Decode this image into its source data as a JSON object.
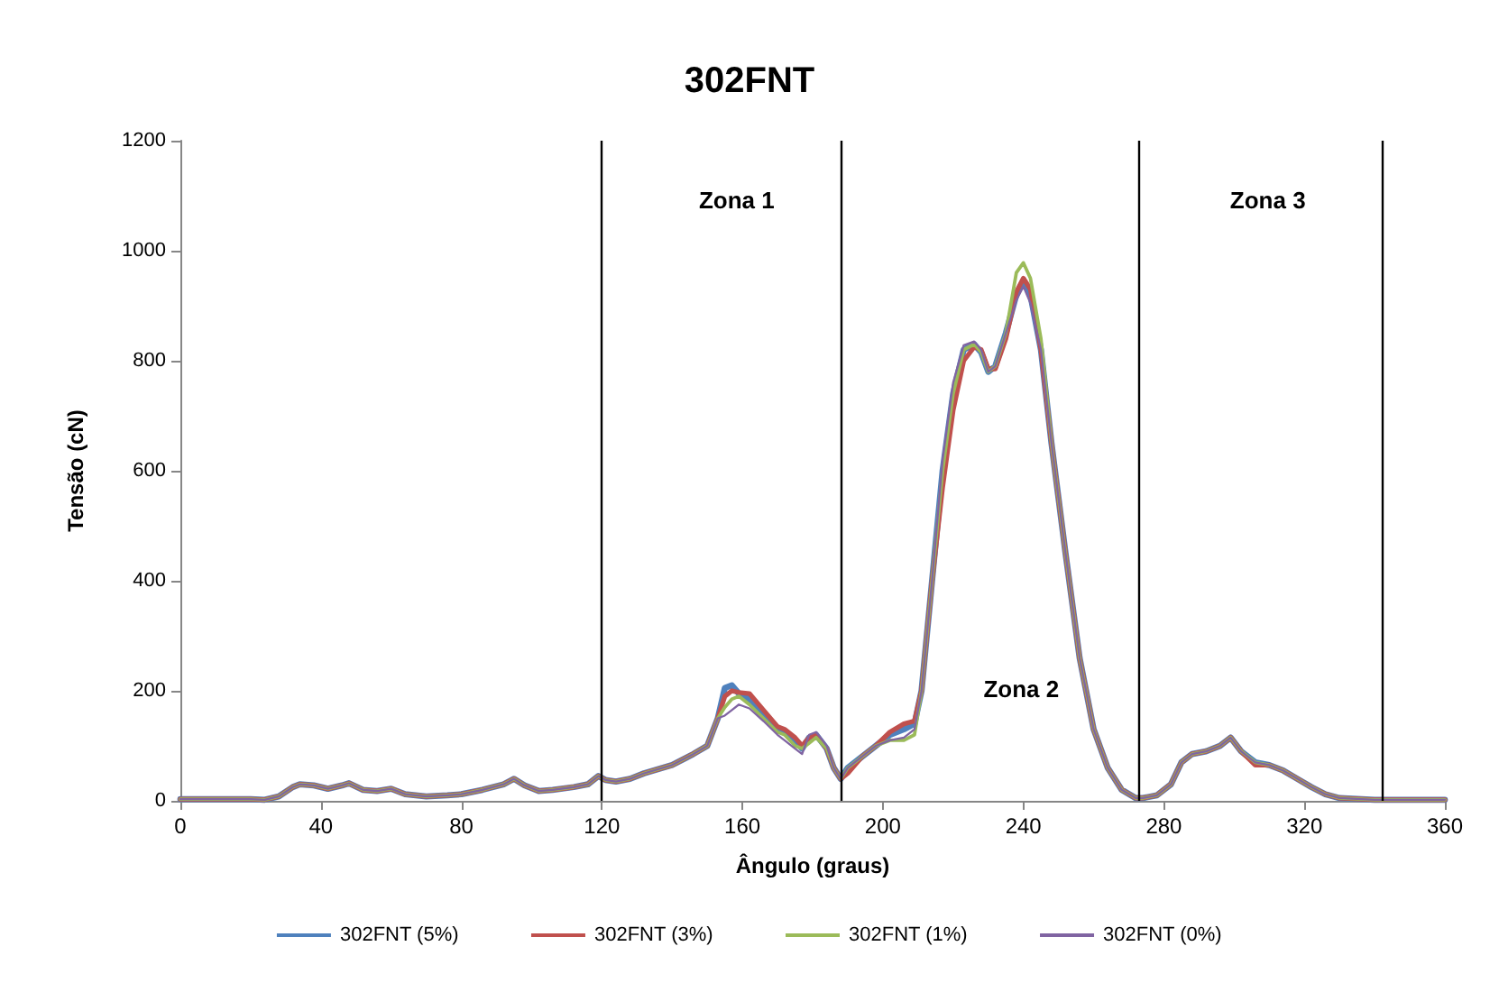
{
  "chart_data": {
    "type": "line",
    "title": "302FNT",
    "xlabel": "Ângulo (graus)",
    "ylabel": "Tensão (cN)",
    "xlim": [
      0,
      360
    ],
    "xticks": [
      0,
      40,
      80,
      120,
      160,
      200,
      240,
      280,
      320,
      360
    ],
    "ylim": [
      0,
      1200
    ],
    "yticks": [
      0,
      200,
      400,
      600,
      800,
      1000,
      1200
    ],
    "grid": false,
    "legend": "bottom",
    "marker": "none",
    "line_style": "solid",
    "x": [
      0,
      10,
      20,
      24,
      28,
      32,
      34,
      38,
      42,
      46,
      48,
      52,
      56,
      60,
      64,
      70,
      76,
      80,
      86,
      92,
      95,
      98,
      102,
      106,
      112,
      116,
      119,
      121,
      124,
      128,
      132,
      140,
      146,
      150,
      153,
      155,
      157,
      159,
      162,
      166,
      170,
      172,
      175,
      177,
      179,
      181,
      184,
      186,
      188,
      190,
      194,
      198,
      202,
      206,
      209,
      211,
      214,
      217,
      220,
      223,
      226,
      228,
      230,
      232,
      235,
      238,
      240,
      242,
      245,
      248,
      252,
      256,
      260,
      264,
      268,
      272,
      274,
      278,
      282,
      285,
      288,
      292,
      296,
      299,
      302,
      306,
      310,
      314,
      318,
      322,
      326,
      330,
      340,
      350,
      360
    ],
    "series": [
      {
        "name": "302FNT (5%)",
        "color": "#4f81bd",
        "values": [
          3,
          3,
          3,
          2,
          8,
          25,
          30,
          28,
          22,
          28,
          32,
          20,
          18,
          22,
          12,
          8,
          10,
          12,
          20,
          30,
          40,
          28,
          18,
          20,
          25,
          30,
          45,
          38,
          35,
          40,
          50,
          65,
          85,
          100,
          150,
          205,
          210,
          195,
          185,
          160,
          130,
          125,
          110,
          95,
          115,
          120,
          95,
          60,
          40,
          60,
          80,
          100,
          120,
          130,
          140,
          200,
          400,
          600,
          740,
          820,
          830,
          815,
          780,
          790,
          850,
          920,
          945,
          920,
          820,
          650,
          450,
          260,
          130,
          60,
          20,
          5,
          5,
          10,
          30,
          70,
          85,
          90,
          100,
          115,
          90,
          70,
          65,
          55,
          40,
          25,
          12,
          5,
          2,
          2,
          2
        ]
      },
      {
        "name": "302FNT (3%)",
        "color": "#c0504d",
        "values": [
          3,
          3,
          3,
          2,
          8,
          25,
          30,
          28,
          22,
          28,
          32,
          20,
          18,
          22,
          12,
          8,
          10,
          12,
          20,
          30,
          40,
          28,
          18,
          20,
          25,
          30,
          45,
          38,
          35,
          40,
          50,
          65,
          85,
          100,
          150,
          190,
          200,
          197,
          195,
          165,
          135,
          130,
          115,
          100,
          115,
          120,
          95,
          60,
          40,
          50,
          80,
          100,
          125,
          140,
          145,
          200,
          400,
          570,
          710,
          800,
          825,
          820,
          785,
          785,
          840,
          925,
          950,
          930,
          820,
          650,
          450,
          260,
          130,
          60,
          20,
          5,
          5,
          10,
          30,
          70,
          85,
          90,
          100,
          115,
          90,
          65,
          65,
          55,
          40,
          25,
          12,
          5,
          2,
          2,
          2
        ]
      },
      {
        "name": "302FNT (1%)",
        "color": "#9bbb59",
        "values": [
          3,
          3,
          3,
          2,
          8,
          25,
          30,
          28,
          22,
          28,
          32,
          20,
          18,
          22,
          12,
          8,
          10,
          12,
          20,
          30,
          40,
          28,
          18,
          20,
          25,
          30,
          45,
          38,
          35,
          40,
          50,
          65,
          85,
          100,
          150,
          170,
          185,
          190,
          175,
          150,
          125,
          120,
          100,
          95,
          105,
          115,
          95,
          60,
          40,
          60,
          80,
          100,
          110,
          110,
          120,
          200,
          400,
          600,
          740,
          820,
          830,
          815,
          780,
          790,
          850,
          960,
          978,
          950,
          840,
          650,
          450,
          260,
          130,
          60,
          20,
          5,
          5,
          10,
          30,
          70,
          85,
          90,
          100,
          115,
          90,
          70,
          65,
          55,
          40,
          25,
          12,
          5,
          2,
          2,
          2
        ]
      },
      {
        "name": "302FNT (0%)",
        "color": "#8064a2",
        "values": [
          3,
          3,
          3,
          2,
          8,
          25,
          30,
          28,
          22,
          28,
          32,
          20,
          18,
          22,
          12,
          8,
          10,
          12,
          20,
          30,
          40,
          28,
          18,
          20,
          25,
          30,
          45,
          38,
          35,
          40,
          50,
          65,
          85,
          100,
          150,
          155,
          165,
          175,
          168,
          145,
          120,
          110,
          95,
          85,
          120,
          125,
          100,
          60,
          40,
          60,
          80,
          100,
          110,
          115,
          130,
          200,
          400,
          620,
          760,
          828,
          835,
          820,
          780,
          790,
          850,
          910,
          935,
          905,
          820,
          650,
          450,
          260,
          130,
          60,
          20,
          5,
          5,
          10,
          30,
          70,
          85,
          90,
          100,
          115,
          90,
          70,
          65,
          55,
          40,
          25,
          12,
          5,
          2,
          2,
          2
        ]
      }
    ],
    "ref_lines": [
      {
        "axis": "x",
        "value": 120,
        "color": "#000000"
      },
      {
        "axis": "x",
        "value": 188,
        "color": "#000000"
      },
      {
        "axis": "x",
        "value": 273,
        "color": "#000000"
      },
      {
        "axis": "x",
        "value": 342,
        "color": "#000000"
      }
    ],
    "annotations": [
      "Zona 1",
      "Zona 2",
      "Zona 3"
    ]
  }
}
